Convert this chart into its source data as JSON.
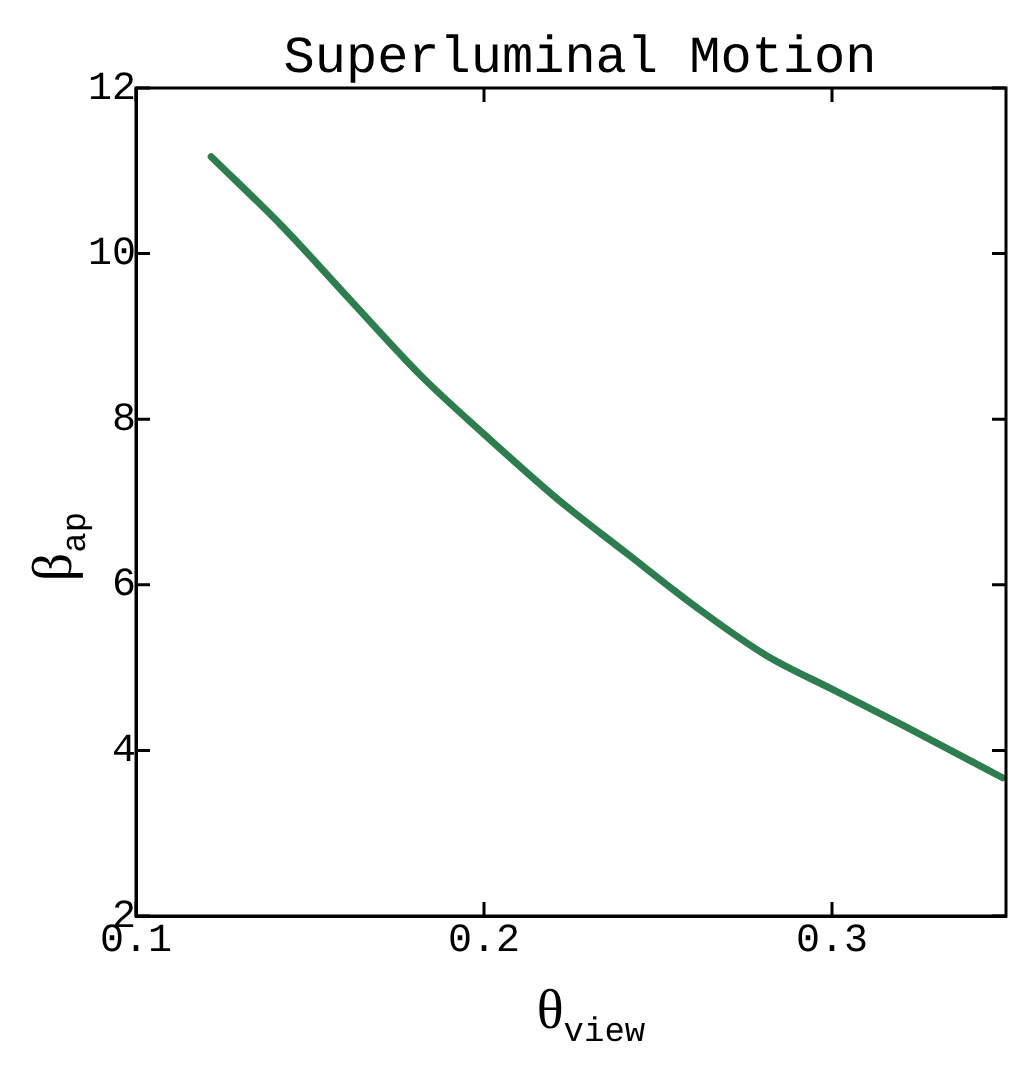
{
  "chart_data": {
    "type": "line",
    "title": "Superluminal Motion",
    "xlabel": "θ$_{view}$",
    "ylabel": "β$_{ap}$",
    "x": [
      0.1216,
      0.142,
      0.162,
      0.182,
      0.2,
      0.221,
      0.241,
      0.261,
      0.281,
      0.3,
      0.321,
      0.349
    ],
    "series": [
      {
        "color": "#2e7d4f",
        "values": [
          11.17,
          10.33,
          9.42,
          8.52,
          7.82,
          7.04,
          6.38,
          5.73,
          5.15,
          4.74,
          4.29,
          3.67
        ]
      }
    ],
    "xlim": [
      0.1,
      0.35
    ],
    "xticks": [
      0.1,
      0.2,
      0.3
    ],
    "ylim": [
      2,
      12
    ],
    "yticks": [
      2,
      4,
      6,
      8,
      10,
      12
    ],
    "marker": "none",
    "line_style": "solid",
    "legend": false
  }
}
